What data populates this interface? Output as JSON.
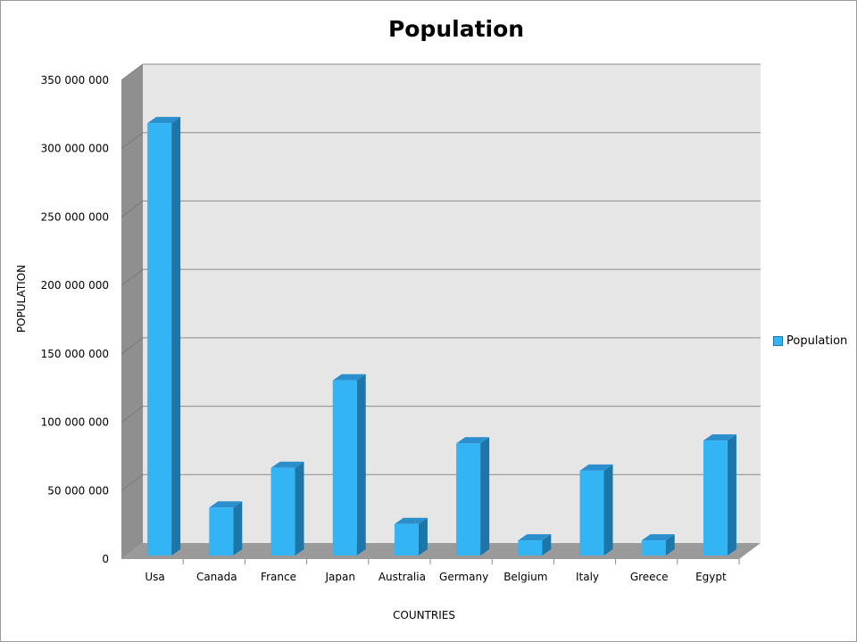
{
  "chart_data": {
    "type": "bar",
    "title": "Population",
    "xlabel": "COUNTRIES",
    "ylabel": "POPULATION",
    "categories": [
      "Usa",
      "Canada",
      "France",
      "Japan",
      "Australia",
      "Germany",
      "Belgium",
      "Italy",
      "Greece",
      "Egypt"
    ],
    "series": [
      {
        "name": "Population",
        "values": [
          316000000,
          35000000,
          64000000,
          128000000,
          23000000,
          82000000,
          11000000,
          62000000,
          11000000,
          84000000
        ]
      }
    ],
    "ylim": [
      0,
      350000000
    ],
    "yticks": [
      "0",
      "50 000 000",
      "100 000 000",
      "150 000 000",
      "200 000 000",
      "250 000 000",
      "300 000 000",
      "350 000 000"
    ],
    "grid": true,
    "legend_position": "right",
    "style": "3d",
    "colors": {
      "bar_front": "#33b4f5",
      "bar_side": "#1d76a8",
      "bar_top": "#2a8fcc",
      "wall": "#e6e6e6",
      "floor": "#9a9a9a"
    }
  },
  "legend": {
    "label": "Population"
  }
}
